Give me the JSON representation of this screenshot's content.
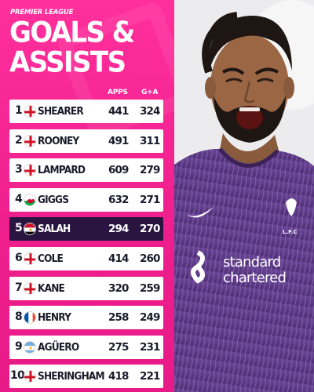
{
  "header": {
    "kicker": "PREMIER LEAGUE",
    "title_line1": "GOALS &",
    "title_line2": "ASSISTS"
  },
  "columns": {
    "apps": "APPS",
    "ga": "G+A"
  },
  "players": [
    {
      "rank": "1",
      "name": "SHEARER",
      "apps": "441",
      "ga": "324",
      "flag": "england"
    },
    {
      "rank": "2",
      "name": "ROONEY",
      "apps": "491",
      "ga": "311",
      "flag": "england"
    },
    {
      "rank": "3",
      "name": "LAMPARD",
      "apps": "609",
      "ga": "279",
      "flag": "england"
    },
    {
      "rank": "4",
      "name": "GIGGS",
      "apps": "632",
      "ga": "271",
      "flag": "wales"
    },
    {
      "rank": "5",
      "name": "SALAH",
      "apps": "294",
      "ga": "270",
      "flag": "egypt",
      "highlighted": true
    },
    {
      "rank": "6",
      "name": "COLE",
      "apps": "414",
      "ga": "260",
      "flag": "england"
    },
    {
      "rank": "7",
      "name": "KANE",
      "apps": "320",
      "ga": "259",
      "flag": "england"
    },
    {
      "rank": "8",
      "name": "HENRY",
      "apps": "258",
      "ga": "249",
      "flag": "france"
    },
    {
      "rank": "9",
      "name": "AGÜERO",
      "apps": "275",
      "ga": "231",
      "flag": "argentina"
    },
    {
      "rank": "10",
      "name": "SHERINGHAM",
      "apps": "418",
      "ga": "221",
      "flag": "england"
    }
  ],
  "photo": {
    "sponsor_line1": "standard",
    "sponsor_line2": "chartered",
    "crest_text": "L.F.C"
  },
  "colors": {
    "brand_pink": "#ef1f8e",
    "highlight_row": "#2a1540",
    "kit_purple": "#5e3a86"
  }
}
